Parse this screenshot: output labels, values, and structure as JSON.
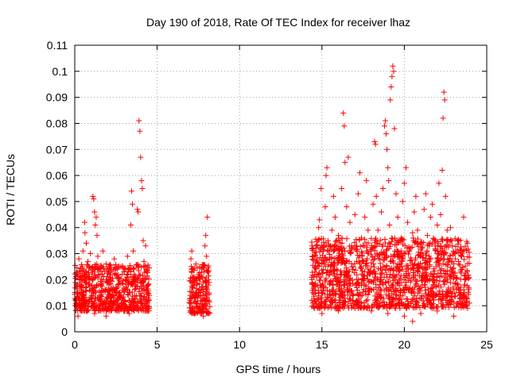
{
  "chart_data": {
    "type": "scatter",
    "title": "Day 190 of 2018, Rate Of TEC Index for receiver lhaz",
    "xlabel": "GPS time / hours",
    "ylabel": "ROTI / TECUs",
    "xlim": [
      0,
      25
    ],
    "ylim": [
      0,
      0.11
    ],
    "xticks": [
      0,
      5,
      10,
      15,
      20,
      25
    ],
    "xtick_labels": [
      "0",
      "5",
      "10",
      "15",
      "20",
      "25"
    ],
    "yticks": [
      0,
      0.01,
      0.02,
      0.03,
      0.04,
      0.05,
      0.06,
      0.07,
      0.08,
      0.09,
      0.1,
      0.11
    ],
    "ytick_labels": [
      "0",
      "0.01",
      "0.02",
      "0.03",
      "0.04",
      "0.05",
      "0.06",
      "0.07",
      "0.08",
      "0.09",
      "0.1",
      "0.11"
    ],
    "grid": true,
    "marker": "plus",
    "color": "#ff0000",
    "series": [
      {
        "points": [
          [
            0.05,
            0.012
          ],
          [
            0.1,
            0.018
          ],
          [
            0.15,
            0.022
          ],
          [
            0.2,
            0.015
          ],
          [
            0.25,
            0.028
          ],
          [
            0.3,
            0.011
          ],
          [
            0.35,
            0.02
          ],
          [
            0.4,
            0.016
          ],
          [
            0.45,
            0.025
          ],
          [
            0.5,
            0.031
          ],
          [
            0.55,
            0.014
          ],
          [
            0.6,
            0.042
          ],
          [
            0.62,
            0.038
          ],
          [
            0.65,
            0.019
          ],
          [
            0.7,
            0.034
          ],
          [
            0.75,
            0.012
          ],
          [
            0.8,
            0.027
          ],
          [
            0.85,
            0.021
          ],
          [
            0.9,
            0.016
          ],
          [
            0.95,
            0.03
          ],
          [
            1.0,
            0.013
          ],
          [
            1.05,
            0.024
          ],
          [
            1.1,
            0.052
          ],
          [
            1.15,
            0.051
          ],
          [
            1.2,
            0.046
          ],
          [
            1.25,
            0.041
          ],
          [
            1.3,
            0.044
          ],
          [
            1.35,
            0.037
          ],
          [
            1.4,
            0.029
          ],
          [
            1.45,
            0.018
          ],
          [
            1.5,
            0.022
          ],
          [
            1.6,
            0.015
          ],
          [
            1.7,
            0.031
          ],
          [
            1.8,
            0.011
          ],
          [
            1.9,
            0.026
          ],
          [
            2.0,
            0.019
          ],
          [
            2.1,
            0.014
          ],
          [
            2.2,
            0.023
          ],
          [
            2.3,
            0.01
          ],
          [
            2.4,
            0.028
          ],
          [
            2.5,
            0.017
          ],
          [
            2.6,
            0.021
          ],
          [
            2.7,
            0.013
          ],
          [
            2.8,
            0.025
          ],
          [
            2.9,
            0.016
          ],
          [
            3.0,
            0.012
          ],
          [
            3.1,
            0.02
          ],
          [
            3.2,
            0.029
          ],
          [
            3.3,
            0.015
          ],
          [
            3.4,
            0.041
          ],
          [
            3.45,
            0.054
          ],
          [
            3.5,
            0.049
          ],
          [
            3.55,
            0.031
          ],
          [
            3.6,
            0.022
          ],
          [
            3.7,
            0.018
          ],
          [
            3.8,
            0.047
          ],
          [
            3.85,
            0.046
          ],
          [
            3.9,
            0.081
          ],
          [
            3.95,
            0.077
          ],
          [
            4.0,
            0.067
          ],
          [
            4.05,
            0.058
          ],
          [
            4.1,
            0.055
          ],
          [
            4.15,
            0.035
          ],
          [
            4.2,
            0.027
          ],
          [
            4.25,
            0.02
          ],
          [
            4.3,
            0.033
          ],
          [
            4.35,
            0.024
          ],
          [
            4.4,
            0.015
          ],
          [
            4.45,
            0.018
          ],
          [
            4.5,
            0.012
          ],
          [
            0.2,
            0.006
          ],
          [
            0.7,
            0.008
          ],
          [
            1.2,
            0.007
          ],
          [
            1.9,
            0.006
          ],
          [
            2.6,
            0.008
          ],
          [
            3.3,
            0.007
          ],
          [
            4.0,
            0.009
          ],
          [
            7.0,
            0.012
          ],
          [
            7.05,
            0.028
          ],
          [
            7.1,
            0.031
          ],
          [
            7.15,
            0.024
          ],
          [
            7.2,
            0.015
          ],
          [
            7.25,
            0.02
          ],
          [
            7.3,
            0.013
          ],
          [
            7.35,
            0.026
          ],
          [
            7.4,
            0.018
          ],
          [
            7.45,
            0.011
          ],
          [
            7.5,
            0.022
          ],
          [
            7.55,
            0.016
          ],
          [
            7.6,
            0.009
          ],
          [
            7.65,
            0.014
          ],
          [
            7.7,
            0.021
          ],
          [
            7.75,
            0.012
          ],
          [
            7.8,
            0.019
          ],
          [
            7.85,
            0.01
          ],
          [
            7.9,
            0.033
          ],
          [
            7.95,
            0.037
          ],
          [
            8.0,
            0.029
          ],
          [
            8.05,
            0.044
          ],
          [
            8.1,
            0.02
          ],
          [
            8.15,
            0.012
          ],
          [
            7.3,
            0.007
          ],
          [
            7.8,
            0.006
          ],
          [
            14.4,
            0.033
          ],
          [
            14.5,
            0.021
          ],
          [
            14.6,
            0.015
          ],
          [
            14.7,
            0.028
          ],
          [
            14.8,
            0.04
          ],
          [
            14.85,
            0.043
          ],
          [
            14.9,
            0.018
          ],
          [
            14.95,
            0.055
          ],
          [
            15.0,
            0.026
          ],
          [
            15.1,
            0.011
          ],
          [
            15.2,
            0.048
          ],
          [
            15.25,
            0.06
          ],
          [
            15.3,
            0.063
          ],
          [
            15.4,
            0.031
          ],
          [
            15.5,
            0.019
          ],
          [
            15.6,
            0.039
          ],
          [
            15.7,
            0.052
          ],
          [
            15.8,
            0.044
          ],
          [
            15.9,
            0.024
          ],
          [
            16.0,
            0.037
          ],
          [
            16.1,
            0.02
          ],
          [
            16.2,
            0.055
          ],
          [
            16.3,
            0.084
          ],
          [
            16.35,
            0.079
          ],
          [
            16.4,
            0.065
          ],
          [
            16.5,
            0.048
          ],
          [
            16.6,
            0.067
          ],
          [
            16.7,
            0.042
          ],
          [
            16.8,
            0.033
          ],
          [
            16.9,
            0.025
          ],
          [
            17.0,
            0.045
          ],
          [
            17.1,
            0.018
          ],
          [
            17.2,
            0.053
          ],
          [
            17.3,
            0.061
          ],
          [
            17.4,
            0.036
          ],
          [
            17.5,
            0.027
          ],
          [
            17.6,
            0.044
          ],
          [
            17.7,
            0.058
          ],
          [
            17.8,
            0.039
          ],
          [
            17.9,
            0.022
          ],
          [
            18.0,
            0.031
          ],
          [
            18.1,
            0.049
          ],
          [
            18.2,
            0.073
          ],
          [
            18.25,
            0.072
          ],
          [
            18.3,
            0.052
          ],
          [
            18.4,
            0.039
          ],
          [
            18.5,
            0.028
          ],
          [
            18.6,
            0.046
          ],
          [
            18.7,
            0.055
          ],
          [
            18.8,
            0.079
          ],
          [
            18.85,
            0.081
          ],
          [
            18.9,
            0.076
          ],
          [
            18.95,
            0.07
          ],
          [
            19.0,
            0.063
          ],
          [
            19.05,
            0.058
          ],
          [
            19.1,
            0.041
          ],
          [
            19.15,
            0.089
          ],
          [
            19.2,
            0.094
          ],
          [
            19.25,
            0.098
          ],
          [
            19.3,
            0.102
          ],
          [
            19.35,
            0.1
          ],
          [
            19.4,
            0.078
          ],
          [
            19.5,
            0.053
          ],
          [
            19.6,
            0.044
          ],
          [
            19.7,
            0.028
          ],
          [
            19.8,
            0.036
          ],
          [
            19.9,
            0.05
          ],
          [
            20.0,
            0.057
          ],
          [
            20.1,
            0.063
          ],
          [
            20.2,
            0.042
          ],
          [
            20.3,
            0.031
          ],
          [
            20.4,
            0.024
          ],
          [
            20.5,
            0.038
          ],
          [
            20.6,
            0.046
          ],
          [
            20.7,
            0.052
          ],
          [
            20.8,
            0.039
          ],
          [
            20.9,
            0.025
          ],
          [
            21.0,
            0.034
          ],
          [
            21.1,
            0.018
          ],
          [
            21.2,
            0.047
          ],
          [
            21.3,
            0.053
          ],
          [
            21.4,
            0.037
          ],
          [
            21.5,
            0.029
          ],
          [
            21.6,
            0.044
          ],
          [
            21.7,
            0.049
          ],
          [
            21.8,
            0.022
          ],
          [
            21.9,
            0.033
          ],
          [
            22.0,
            0.041
          ],
          [
            22.1,
            0.057
          ],
          [
            22.2,
            0.045
          ],
          [
            22.3,
            0.062
          ],
          [
            22.35,
            0.082
          ],
          [
            22.4,
            0.092
          ],
          [
            22.45,
            0.089
          ],
          [
            22.5,
            0.052
          ],
          [
            22.6,
            0.039
          ],
          [
            22.7,
            0.027
          ],
          [
            22.8,
            0.04
          ],
          [
            22.9,
            0.033
          ],
          [
            23.0,
            0.021
          ],
          [
            23.1,
            0.028
          ],
          [
            23.2,
            0.018
          ],
          [
            23.3,
            0.026
          ],
          [
            23.4,
            0.016
          ],
          [
            23.5,
            0.024
          ],
          [
            23.6,
            0.044
          ],
          [
            23.7,
            0.02
          ],
          [
            23.8,
            0.013
          ],
          [
            23.9,
            0.017
          ],
          [
            23.95,
            0.011
          ],
          [
            15.0,
            0.007
          ],
          [
            16.0,
            0.008
          ],
          [
            17.0,
            0.009
          ],
          [
            18.0,
            0.008
          ],
          [
            19.0,
            0.007
          ],
          [
            20.0,
            0.006
          ],
          [
            20.5,
            0.004
          ],
          [
            21.0,
            0.007
          ],
          [
            22.0,
            0.008
          ],
          [
            23.0,
            0.006
          ]
        ]
      }
    ],
    "dense_bands": [
      {
        "x": [
          0.0,
          4.55
        ],
        "y": [
          0.008,
          0.026
        ]
      },
      {
        "x": [
          6.95,
          8.2
        ],
        "y": [
          0.007,
          0.026
        ]
      },
      {
        "x": [
          14.35,
          23.95
        ],
        "y": [
          0.009,
          0.036
        ]
      }
    ]
  }
}
